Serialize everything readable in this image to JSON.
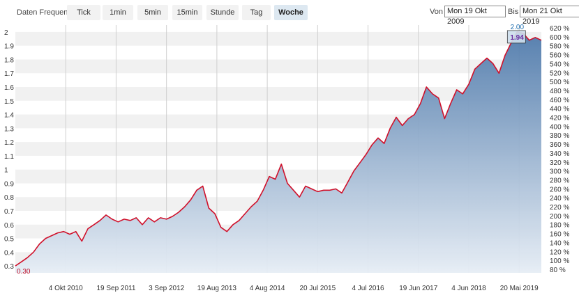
{
  "toolbar": {
    "frequency_label": "Daten Frequenz",
    "buttons": [
      {
        "label": "Tick",
        "active": false
      },
      {
        "label": "1min",
        "active": false
      },
      {
        "label": "5min",
        "active": false
      },
      {
        "label": "15min",
        "active": false
      },
      {
        "label": "Stunde",
        "active": false
      },
      {
        "label": "Tag",
        "active": false
      },
      {
        "label": "Woche",
        "active": true
      }
    ],
    "from_label": "Von",
    "from_value": "Mon 19 Okt 2009",
    "to_label": "Bis",
    "to_value": "Mon 21 Okt 2019"
  },
  "colors": {
    "line": "#d0102a",
    "area_top": "#4f7aab",
    "area_bottom": "#e6edf5",
    "band": "#f1f1f1",
    "label_start": "#c0102a",
    "label_max": "#1f6fb0",
    "label_last": "#6a2ca0"
  },
  "chart_data": {
    "type": "area",
    "x_start": "2009-10-19",
    "x_end": "2019-10-21",
    "x_tick_labels": [
      "4 Okt 2010",
      "19 Sep 2011",
      "3 Sep 2012",
      "19 Aug 2013",
      "4 Aug 2014",
      "20 Jul 2015",
      "4 Jul 2016",
      "19 Jun 2017",
      "4 Jun 2018",
      "20 Mai 2019"
    ],
    "y_left_ticks": [
      "0.3",
      "0.4",
      "0.5",
      "0.6",
      "0.7",
      "0.8",
      "0.9",
      "1",
      "1.1",
      "1.2",
      "1.3",
      "1.4",
      "1.5",
      "1.6",
      "1.7",
      "1.8",
      "1.9",
      "2"
    ],
    "y_right_ticks": [
      "80 %",
      "100 %",
      "120 %",
      "140 %",
      "160 %",
      "180 %",
      "200 %",
      "220 %",
      "240 %",
      "260 %",
      "280 %",
      "300 %",
      "320 %",
      "340 %",
      "360 %",
      "380 %",
      "400 %",
      "420 %",
      "440 %",
      "460 %",
      "480 %",
      "500 %",
      "520 %",
      "540 %",
      "560 %",
      "580 %",
      "600 %",
      "620 %"
    ],
    "ylim": [
      0.25,
      2.05
    ],
    "right_ylim_percent": [
      80,
      620
    ],
    "start_value_label": "0.30",
    "max_value_label": "2.00",
    "last_value_label": "1.94",
    "series": [
      {
        "dates": [
          "2009-10-19",
          "2009-11-30",
          "2010-01-11",
          "2010-02-22",
          "2010-04-05",
          "2010-05-17",
          "2010-06-28",
          "2010-08-09",
          "2010-09-20",
          "2010-11-01",
          "2010-12-13",
          "2011-01-24",
          "2011-03-07",
          "2011-04-18",
          "2011-05-30",
          "2011-07-11",
          "2011-08-22",
          "2011-10-03",
          "2011-11-14",
          "2011-12-26",
          "2012-02-06",
          "2012-03-19",
          "2012-04-30",
          "2012-06-11",
          "2012-07-23",
          "2012-09-03",
          "2012-10-15",
          "2012-11-26",
          "2013-01-07",
          "2013-02-18",
          "2013-04-01",
          "2013-05-13",
          "2013-06-24",
          "2013-08-05",
          "2013-09-16",
          "2013-10-28",
          "2013-12-09",
          "2014-01-20",
          "2014-03-03",
          "2014-04-14",
          "2014-05-26",
          "2014-07-07",
          "2014-08-18",
          "2014-09-29",
          "2014-11-10",
          "2014-12-22",
          "2015-02-02",
          "2015-03-16",
          "2015-04-27",
          "2015-06-08",
          "2015-07-20",
          "2015-08-31",
          "2015-10-12",
          "2015-11-23",
          "2016-01-04",
          "2016-02-15",
          "2016-03-28",
          "2016-05-09",
          "2016-06-20",
          "2016-08-01",
          "2016-09-12",
          "2016-10-24",
          "2016-12-05",
          "2017-01-16",
          "2017-02-27",
          "2017-04-10",
          "2017-05-22",
          "2017-07-03",
          "2017-08-14",
          "2017-09-25",
          "2017-11-06",
          "2017-12-18",
          "2018-01-29",
          "2018-03-12",
          "2018-04-23",
          "2018-06-04",
          "2018-07-16",
          "2018-08-27",
          "2018-10-08",
          "2018-11-19",
          "2018-12-31",
          "2019-02-11",
          "2019-03-25",
          "2019-05-06",
          "2019-06-17",
          "2019-07-29",
          "2019-09-09",
          "2019-10-21"
        ],
        "values": [
          0.3,
          0.33,
          0.36,
          0.4,
          0.46,
          0.5,
          0.52,
          0.54,
          0.55,
          0.53,
          0.55,
          0.48,
          0.57,
          0.6,
          0.63,
          0.67,
          0.64,
          0.62,
          0.64,
          0.63,
          0.65,
          0.6,
          0.65,
          0.62,
          0.65,
          0.64,
          0.66,
          0.69,
          0.73,
          0.78,
          0.85,
          0.88,
          0.72,
          0.68,
          0.58,
          0.55,
          0.6,
          0.63,
          0.68,
          0.73,
          0.77,
          0.85,
          0.95,
          0.93,
          1.04,
          0.9,
          0.85,
          0.8,
          0.88,
          0.86,
          0.84,
          0.85,
          0.85,
          0.86,
          0.83,
          0.91,
          0.99,
          1.05,
          1.11,
          1.18,
          1.23,
          1.19,
          1.3,
          1.38,
          1.32,
          1.37,
          1.4,
          1.48,
          1.6,
          1.55,
          1.52,
          1.37,
          1.48,
          1.58,
          1.55,
          1.62,
          1.73,
          1.77,
          1.81,
          1.77,
          1.7,
          1.83,
          1.92,
          2.0,
          1.99,
          1.94,
          1.96,
          1.94
        ]
      }
    ]
  }
}
